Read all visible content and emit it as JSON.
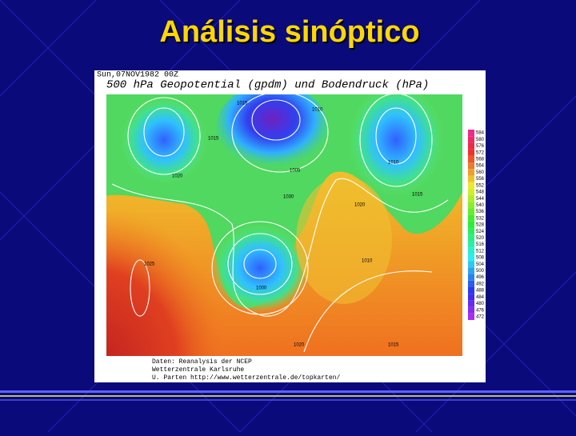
{
  "slide": {
    "title": "Análisis sinóptico"
  },
  "map": {
    "timestamp": "Sun,07NOV1982 00Z",
    "heading": "500 hPa Geopotential (gpdm) und Bodendruck (hPa)",
    "contour_labels": [
      "1015",
      "1010",
      "1015",
      "1020",
      "1030",
      "1005",
      "1010",
      "1015",
      "1020",
      "1025",
      "1010",
      "1000",
      "1020",
      "1015"
    ],
    "colorbar": [
      584,
      580,
      576,
      572,
      568,
      564,
      560,
      556,
      552,
      548,
      544,
      540,
      536,
      532,
      528,
      524,
      520,
      516,
      512,
      508,
      504,
      500,
      496,
      492,
      488,
      484,
      480,
      476,
      472
    ],
    "credits": [
      "Daten: Reanalysis der NCEP",
      "Wetterzentrale Karlsruhe",
      "U. Parten     http://www.wetterzentrale.de/topkarten/"
    ]
  }
}
